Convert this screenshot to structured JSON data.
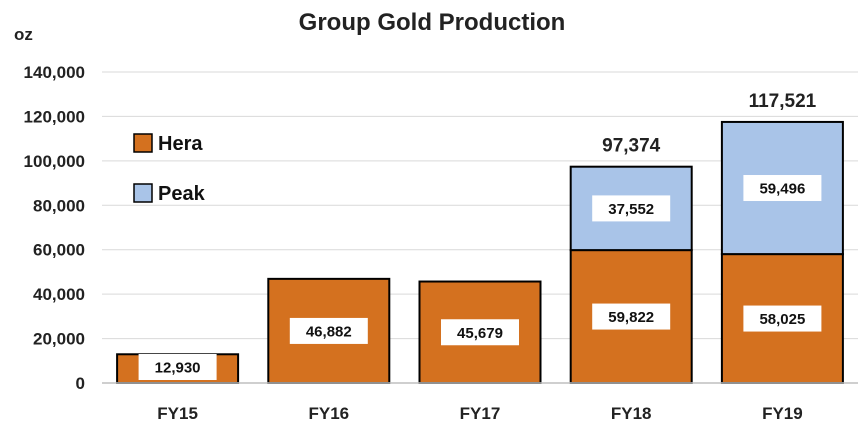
{
  "chart_data": {
    "type": "bar",
    "stacked": true,
    "title": "Group Gold Production",
    "ylabel": "oz",
    "xlabel": "",
    "categories": [
      "FY15",
      "FY16",
      "FY17",
      "FY18",
      "FY19"
    ],
    "ylim": [
      0,
      140000
    ],
    "yticks": [
      "0",
      "20,000",
      "40,000",
      "60,000",
      "80,000",
      "100,000",
      "120,000",
      "140,000"
    ],
    "grid": true,
    "legend_position": "top-left",
    "series": [
      {
        "name": "Hera",
        "color": "#D4711F",
        "values": [
          12930,
          46882,
          45679,
          59822,
          58025
        ],
        "labels": [
          "12,930",
          "46,882",
          "45,679",
          "59,822",
          "58,025"
        ]
      },
      {
        "name": "Peak",
        "color": "#A9C4E8",
        "values": [
          0,
          0,
          0,
          37552,
          59496
        ],
        "labels": [
          "",
          "",
          "",
          "37,552",
          "59,496"
        ]
      }
    ],
    "totals": [
      "",
      "",
      "",
      "97,374",
      "117,521"
    ]
  }
}
